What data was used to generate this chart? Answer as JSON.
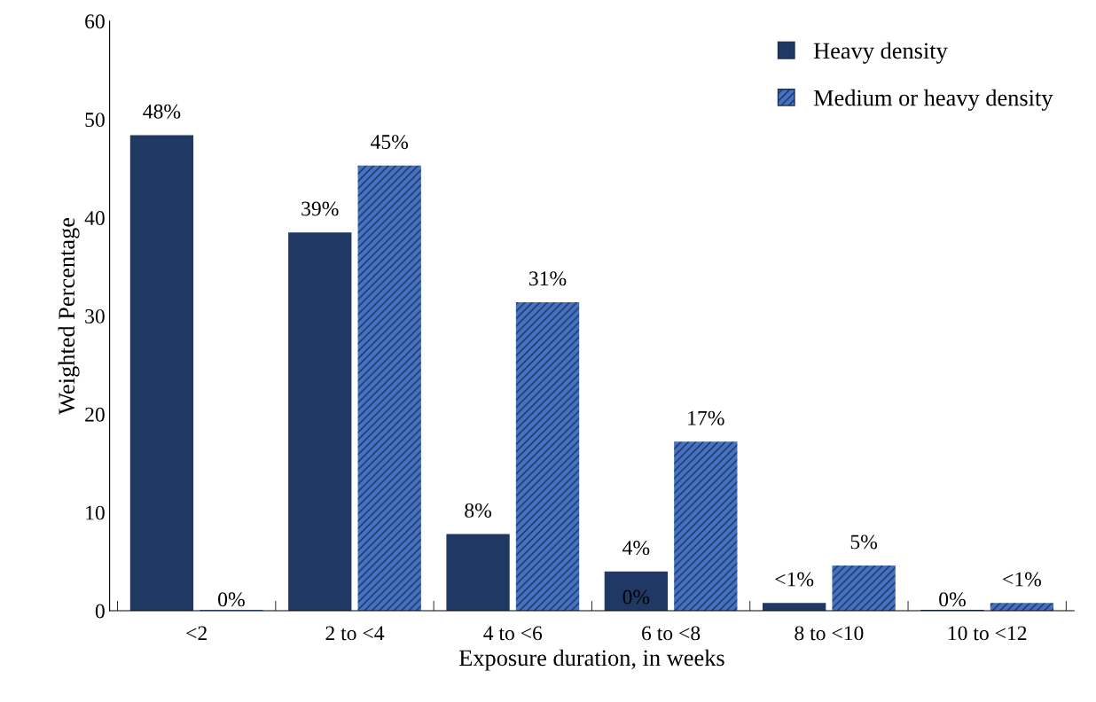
{
  "chart_data": {
    "type": "bar",
    "xlabel": "Exposure duration, in weeks",
    "ylabel": "Weighted Percentage",
    "categories": [
      "<2",
      "2 to <4",
      "4 to <6",
      "6 to <8",
      "8 to <10",
      "10 to <12"
    ],
    "series": [
      {
        "name": "Heavy density",
        "color": "#1f3864",
        "values": [
          48.4,
          38.5,
          7.8,
          4.0,
          0.8,
          0
        ],
        "value_labels": [
          "48%",
          "39%",
          "8%",
          "4%",
          "<1%",
          "0%"
        ]
      },
      {
        "name": "Medium or heavy density",
        "color": "#4472c4",
        "values": [
          0,
          45.3,
          31.4,
          17.2,
          4.6,
          0.8
        ],
        "value_labels": [
          "0%",
          "45%",
          "31%",
          "17%",
          "5%",
          "<1%"
        ]
      }
    ],
    "annotations": [
      {
        "text": "0%",
        "x": "6 to <8",
        "y": 0
      }
    ],
    "ylim": [
      0,
      60
    ],
    "yticks": [
      0,
      10,
      20,
      30,
      40,
      50,
      60
    ],
    "grid": false,
    "legend": "top right"
  }
}
